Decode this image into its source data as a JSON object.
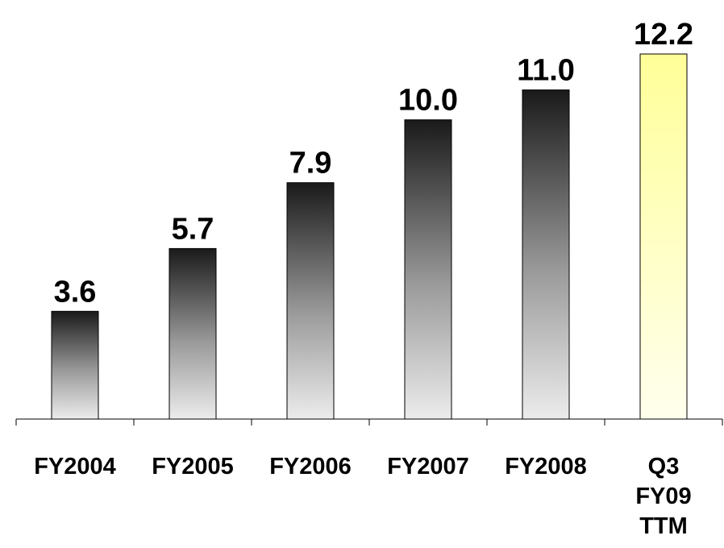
{
  "chart_data": {
    "type": "bar",
    "categories": [
      [
        "FY2004"
      ],
      [
        "FY2005"
      ],
      [
        "FY2006"
      ],
      [
        "FY2007"
      ],
      [
        "FY2008"
      ],
      [
        "Q3",
        "FY09",
        "TTM"
      ]
    ],
    "values": [
      3.6,
      5.7,
      7.9,
      10.0,
      11.0,
      12.2
    ],
    "value_labels": [
      "3.6",
      "5.7",
      "7.9",
      "10.0",
      "11.0",
      "12.2"
    ],
    "title": "",
    "xlabel": "",
    "ylabel": "",
    "ylim": [
      0,
      12.2
    ],
    "grid": false,
    "legend": "none",
    "colors": {
      "bar_gradient_top": "#1a1a1a",
      "bar_gradient_bottom": "#ececec",
      "highlight_top": "#ffff99",
      "highlight_bottom": "#ffffee",
      "bar_outline": "#000000",
      "axis": "#000000"
    },
    "highlight_index": 5
  }
}
